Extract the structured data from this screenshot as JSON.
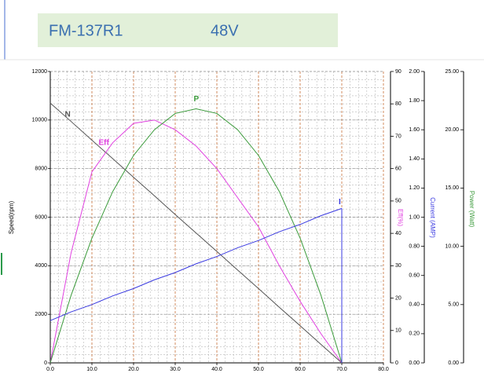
{
  "header": {
    "model": "FM-137R1",
    "voltage": "48V"
  },
  "chart_data": {
    "type": "line",
    "x_label": null,
    "x": [
      0,
      5,
      10,
      15,
      20,
      25,
      30,
      35,
      40,
      45,
      50,
      55,
      60,
      65,
      70
    ],
    "xlim": [
      0,
      80
    ],
    "xticks": [
      {
        "value": 0,
        "label": "0.0"
      },
      {
        "value": 10,
        "label": "10.0"
      },
      {
        "value": 20,
        "label": "20.0"
      },
      {
        "value": 30,
        "label": "30.0"
      },
      {
        "value": 40,
        "label": "40.0"
      },
      {
        "value": 50,
        "label": "50.0"
      },
      {
        "value": 60,
        "label": "60.0"
      },
      {
        "value": 70,
        "label": "70.0"
      },
      {
        "value": 80,
        "label": "80.0"
      }
    ],
    "y_label": "Speed(rpm)",
    "ylim": [
      0,
      12000
    ],
    "yticks": [
      0,
      2000,
      4000,
      6000,
      8000,
      10000,
      12000
    ],
    "y2_label": "Eff(%)",
    "y2lim": [
      0,
      90
    ],
    "y2ticks": [
      0,
      10,
      20,
      30,
      40,
      50,
      60,
      70,
      80,
      90
    ],
    "y3_label": "Current (AMP)",
    "y3lim": [
      0,
      2
    ],
    "y3ticks": [
      {
        "value": 0,
        "label": "0.00"
      },
      {
        "value": 0.2,
        "label": "0.20"
      },
      {
        "value": 0.4,
        "label": "0.40"
      },
      {
        "value": 0.6,
        "label": "0.60"
      },
      {
        "value": 0.8,
        "label": "0.80"
      },
      {
        "value": 1,
        "label": "1.00"
      },
      {
        "value": 1.2,
        "label": "1.20"
      },
      {
        "value": 1.4,
        "label": "1.40"
      },
      {
        "value": 1.6,
        "label": "1.60"
      },
      {
        "value": 1.8,
        "label": "1.80"
      },
      {
        "value": 2,
        "label": "2.00"
      }
    ],
    "y4_label": "Power (Watt)",
    "y4lim": [
      0,
      25
    ],
    "y4ticks": [
      {
        "value": 0,
        "label": "0.00"
      },
      {
        "value": 5,
        "label": "5.00"
      },
      {
        "value": 10,
        "label": "10.00"
      },
      {
        "value": 15,
        "label": "15.00"
      },
      {
        "value": 20,
        "label": "20.00"
      },
      {
        "value": 25,
        "label": "25.00"
      }
    ],
    "grid": true,
    "series": [
      {
        "name": "N",
        "color": "#555555",
        "axis": "y",
        "values": [
          10700,
          9940,
          9170,
          8410,
          7640,
          6880,
          6110,
          5350,
          4590,
          3820,
          3060,
          2290,
          1530,
          760,
          0
        ]
      },
      {
        "name": "Eff",
        "color": "#e040e0",
        "axis": "y2",
        "values": [
          0,
          34,
          59,
          68,
          74,
          75,
          72,
          67,
          60,
          51,
          42,
          30,
          19,
          9,
          0
        ]
      },
      {
        "name": "P",
        "color": "#3a9a3a",
        "axis": "y4",
        "values": [
          0,
          5.8,
          10.7,
          14.7,
          17.8,
          20.0,
          21.4,
          21.8,
          21.4,
          20.0,
          17.8,
          14.7,
          10.7,
          5.8,
          0
        ]
      },
      {
        "name": "I",
        "color": "#3a3ae0",
        "axis": "y3",
        "values": [
          0.29,
          0.35,
          0.4,
          0.46,
          0.51,
          0.57,
          0.62,
          0.68,
          0.73,
          0.79,
          0.84,
          0.9,
          0.95,
          1.01,
          1.06
        ]
      }
    ]
  }
}
